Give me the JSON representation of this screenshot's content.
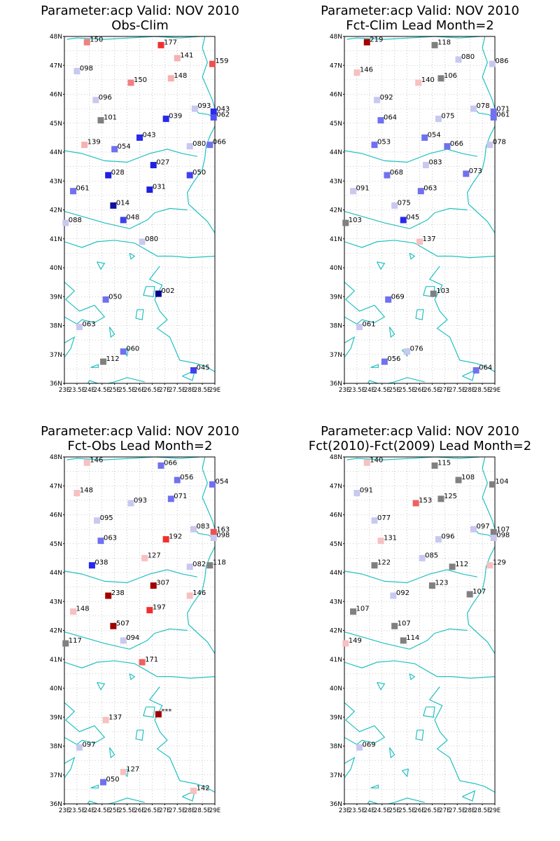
{
  "colors": {
    "coast": "#22c0c0",
    "grid": "#a0a0a0",
    "frame": "#000000",
    "text": "#000000"
  },
  "axes": {
    "lat_labels": [
      "36N",
      "37N",
      "38N",
      "39N",
      "40N",
      "41N",
      "42N",
      "43N",
      "44N",
      "45N",
      "46N",
      "47N",
      "48N"
    ],
    "lon_labels": [
      "23E",
      "23.5E",
      "24E",
      "24.5E",
      "25E",
      "25.5E",
      "26E",
      "26.5E",
      "27E",
      "27.5E",
      "28E",
      "28.5E",
      "29E"
    ],
    "lon_range": [
      23,
      29
    ],
    "lat_range": [
      36,
      48
    ]
  },
  "panels": [
    {
      "title1": "Parameter:acp Valid: NOV 2010",
      "title2": "Obs-Clim",
      "stations": [
        {
          "lon": 23.9,
          "lat": 47.8,
          "label": "150",
          "color": "#f08080"
        },
        {
          "lon": 26.85,
          "lat": 47.7,
          "label": "177",
          "color": "#f03030"
        },
        {
          "lon": 27.5,
          "lat": 47.25,
          "label": "141",
          "color": "#f8b0b0"
        },
        {
          "lon": 28.9,
          "lat": 47.05,
          "label": "159",
          "color": "#f05050"
        },
        {
          "lon": 23.5,
          "lat": 46.8,
          "label": "098",
          "color": "#c8c8f0"
        },
        {
          "lon": 25.65,
          "lat": 46.4,
          "label": "150",
          "color": "#f08080"
        },
        {
          "lon": 27.25,
          "lat": 46.55,
          "label": "148",
          "color": "#f8b0b0"
        },
        {
          "lon": 24.25,
          "lat": 45.8,
          "label": "096",
          "color": "#c8c8f0"
        },
        {
          "lon": 28.2,
          "lat": 45.5,
          "label": "093",
          "color": "#c8c8f0"
        },
        {
          "lon": 28.95,
          "lat": 45.4,
          "label": "043",
          "color": "#2828f0"
        },
        {
          "lon": 28.95,
          "lat": 45.2,
          "label": "062",
          "color": "#5050f0"
        },
        {
          "lon": 24.45,
          "lat": 45.1,
          "label": "101",
          "color": "#808080"
        },
        {
          "lon": 27.05,
          "lat": 45.15,
          "label": "039",
          "color": "#2828f0"
        },
        {
          "lon": 26.0,
          "lat": 44.5,
          "label": "043",
          "color": "#2828f0"
        },
        {
          "lon": 23.8,
          "lat": 44.25,
          "label": "139",
          "color": "#f8b0b0"
        },
        {
          "lon": 25.0,
          "lat": 44.1,
          "label": "054",
          "color": "#7070f0"
        },
        {
          "lon": 28.0,
          "lat": 44.2,
          "label": "080",
          "color": "#c8c8f0"
        },
        {
          "lon": 28.8,
          "lat": 44.25,
          "label": "066",
          "color": "#7070f0"
        },
        {
          "lon": 26.55,
          "lat": 43.55,
          "label": "027",
          "color": "#2020e0"
        },
        {
          "lon": 24.75,
          "lat": 43.2,
          "label": "028",
          "color": "#2020e0"
        },
        {
          "lon": 28.0,
          "lat": 43.2,
          "label": "050",
          "color": "#4040f0"
        },
        {
          "lon": 23.35,
          "lat": 42.65,
          "label": "061",
          "color": "#7070f0"
        },
        {
          "lon": 26.4,
          "lat": 42.7,
          "label": "031",
          "color": "#2020e0"
        },
        {
          "lon": 24.95,
          "lat": 42.15,
          "label": "014",
          "color": "#1010a0"
        },
        {
          "lon": 25.35,
          "lat": 41.65,
          "label": "048",
          "color": "#4040f0"
        },
        {
          "lon": 23.05,
          "lat": 41.55,
          "label": "088",
          "color": "#c8c8f0"
        },
        {
          "lon": 26.1,
          "lat": 40.9,
          "label": "080",
          "color": "#c8c8f0"
        },
        {
          "lon": 26.75,
          "lat": 39.1,
          "label": "002",
          "color": "#000090"
        },
        {
          "lon": 24.65,
          "lat": 38.9,
          "label": "050",
          "color": "#7070f0"
        },
        {
          "lon": 23.6,
          "lat": 37.95,
          "label": "063",
          "color": "#c8c8f0"
        },
        {
          "lon": 25.35,
          "lat": 37.1,
          "label": "060",
          "color": "#7070f0"
        },
        {
          "lon": 24.55,
          "lat": 36.75,
          "label": "112",
          "color": "#808080"
        },
        {
          "lon": 28.15,
          "lat": 36.45,
          "label": "045",
          "color": "#4040f0"
        }
      ]
    },
    {
      "title1": "Parameter:acp Valid: NOV 2010",
      "title2": "Fct-Clim Lead Month=2",
      "stations": [
        {
          "lon": 23.9,
          "lat": 47.8,
          "label": "219",
          "color": "#a00000"
        },
        {
          "lon": 26.6,
          "lat": 47.7,
          "label": "118",
          "color": "#808080"
        },
        {
          "lon": 27.55,
          "lat": 47.2,
          "label": "080",
          "color": "#c8c8f0"
        },
        {
          "lon": 28.9,
          "lat": 47.05,
          "label": "086",
          "color": "#c8c8f0"
        },
        {
          "lon": 23.5,
          "lat": 46.75,
          "label": "146",
          "color": "#f8c0c0"
        },
        {
          "lon": 25.95,
          "lat": 46.4,
          "label": "140",
          "color": "#f8c0c0"
        },
        {
          "lon": 26.85,
          "lat": 46.55,
          "label": "106",
          "color": "#808080"
        },
        {
          "lon": 24.3,
          "lat": 45.8,
          "label": "092",
          "color": "#c8c8f0"
        },
        {
          "lon": 28.15,
          "lat": 45.5,
          "label": "078",
          "color": "#c8c8f0"
        },
        {
          "lon": 28.95,
          "lat": 45.4,
          "label": "071",
          "color": "#7070f0"
        },
        {
          "lon": 28.95,
          "lat": 45.2,
          "label": "061",
          "color": "#7070f0"
        },
        {
          "lon": 24.45,
          "lat": 45.1,
          "label": "064",
          "color": "#7070f0"
        },
        {
          "lon": 26.75,
          "lat": 45.15,
          "label": "075",
          "color": "#c8c8f0"
        },
        {
          "lon": 26.2,
          "lat": 44.5,
          "label": "054",
          "color": "#7070f0"
        },
        {
          "lon": 24.2,
          "lat": 44.25,
          "label": "053",
          "color": "#7070f0"
        },
        {
          "lon": 27.1,
          "lat": 44.2,
          "label": "066",
          "color": "#7070f0"
        },
        {
          "lon": 28.8,
          "lat": 44.25,
          "label": "078",
          "color": "#c8c8f0"
        },
        {
          "lon": 26.25,
          "lat": 43.55,
          "label": "083",
          "color": "#c8c8f0"
        },
        {
          "lon": 24.7,
          "lat": 43.2,
          "label": "068",
          "color": "#7070f0"
        },
        {
          "lon": 27.85,
          "lat": 43.25,
          "label": "073",
          "color": "#7070f0"
        },
        {
          "lon": 23.35,
          "lat": 42.65,
          "label": "091",
          "color": "#c8c8f0"
        },
        {
          "lon": 26.05,
          "lat": 42.65,
          "label": "063",
          "color": "#7070f0"
        },
        {
          "lon": 25.0,
          "lat": 42.15,
          "label": "075",
          "color": "#c8c8f0"
        },
        {
          "lon": 25.35,
          "lat": 41.65,
          "label": "045",
          "color": "#2828f0"
        },
        {
          "lon": 23.05,
          "lat": 41.55,
          "label": "103",
          "color": "#808080"
        },
        {
          "lon": 26.0,
          "lat": 40.9,
          "label": "137",
          "color": "#f8c0c0"
        },
        {
          "lon": 26.55,
          "lat": 39.1,
          "label": "103",
          "color": "#808080"
        },
        {
          "lon": 24.75,
          "lat": 38.9,
          "label": "069",
          "color": "#7070f0"
        },
        {
          "lon": 23.6,
          "lat": 37.95,
          "label": "061",
          "color": "#c8c8f0"
        },
        {
          "lon": 25.5,
          "lat": 37.1,
          "label": "076",
          "color": "#c8c8f0"
        },
        {
          "lon": 24.6,
          "lat": 36.75,
          "label": "056",
          "color": "#7070f0"
        },
        {
          "lon": 28.25,
          "lat": 36.45,
          "label": "064",
          "color": "#7070f0"
        }
      ]
    },
    {
      "title1": "Parameter:acp Valid: NOV 2010",
      "title2": "Fct-Obs Lead Month=2",
      "stations": [
        {
          "lon": 23.9,
          "lat": 47.8,
          "label": "146",
          "color": "#f8c0c0"
        },
        {
          "lon": 26.85,
          "lat": 47.7,
          "label": "066",
          "color": "#7070f0"
        },
        {
          "lon": 27.5,
          "lat": 47.2,
          "label": "056",
          "color": "#7070f0"
        },
        {
          "lon": 28.9,
          "lat": 47.05,
          "label": "054",
          "color": "#7070f0"
        },
        {
          "lon": 23.5,
          "lat": 46.75,
          "label": "148",
          "color": "#f8c0c0"
        },
        {
          "lon": 25.65,
          "lat": 46.4,
          "label": "093",
          "color": "#c8c8f0"
        },
        {
          "lon": 27.25,
          "lat": 46.55,
          "label": "071",
          "color": "#7070f0"
        },
        {
          "lon": 24.3,
          "lat": 45.8,
          "label": "095",
          "color": "#c8c8f0"
        },
        {
          "lon": 28.15,
          "lat": 45.5,
          "label": "083",
          "color": "#c8c8f0"
        },
        {
          "lon": 28.95,
          "lat": 45.4,
          "label": "163",
          "color": "#f05050"
        },
        {
          "lon": 28.95,
          "lat": 45.2,
          "label": "098",
          "color": "#c8c8f0"
        },
        {
          "lon": 24.45,
          "lat": 45.1,
          "label": "063",
          "color": "#7070f0"
        },
        {
          "lon": 27.05,
          "lat": 45.15,
          "label": "192",
          "color": "#f03030"
        },
        {
          "lon": 26.2,
          "lat": 44.5,
          "label": "127",
          "color": "#f8c0c0"
        },
        {
          "lon": 24.1,
          "lat": 44.25,
          "label": "038",
          "color": "#2828f0"
        },
        {
          "lon": 28.0,
          "lat": 44.2,
          "label": "082",
          "color": "#c8c8f0"
        },
        {
          "lon": 28.8,
          "lat": 44.25,
          "label": "118",
          "color": "#808080"
        },
        {
          "lon": 26.55,
          "lat": 43.55,
          "label": "307",
          "color": "#a00000"
        },
        {
          "lon": 24.75,
          "lat": 43.2,
          "label": "238",
          "color": "#a00000"
        },
        {
          "lon": 28.0,
          "lat": 43.2,
          "label": "146",
          "color": "#f8c0c0"
        },
        {
          "lon": 23.35,
          "lat": 42.65,
          "label": "148",
          "color": "#f8c0c0"
        },
        {
          "lon": 26.4,
          "lat": 42.7,
          "label": "197",
          "color": "#f03030"
        },
        {
          "lon": 24.95,
          "lat": 42.15,
          "label": "507",
          "color": "#a00000"
        },
        {
          "lon": 25.35,
          "lat": 41.65,
          "label": "094",
          "color": "#c8c8f0"
        },
        {
          "lon": 23.05,
          "lat": 41.55,
          "label": "117",
          "color": "#808080"
        },
        {
          "lon": 26.1,
          "lat": 40.9,
          "label": "171",
          "color": "#f06060"
        },
        {
          "lon": 26.75,
          "lat": 39.1,
          "label": "***",
          "color": "#a00000"
        },
        {
          "lon": 24.65,
          "lat": 38.9,
          "label": "137",
          "color": "#f8c0c0"
        },
        {
          "lon": 23.6,
          "lat": 37.95,
          "label": "097",
          "color": "#c8c8f0"
        },
        {
          "lon": 25.35,
          "lat": 37.1,
          "label": "127",
          "color": "#f8c0c0"
        },
        {
          "lon": 24.55,
          "lat": 36.75,
          "label": "050",
          "color": "#7070f0"
        },
        {
          "lon": 28.15,
          "lat": 36.45,
          "label": "142",
          "color": "#f8c0c0"
        }
      ]
    },
    {
      "title1": "Parameter:acp Valid: NOV 2010",
      "title2": "Fct(2010)-Fct(2009) Lead Month=2",
      "stations": [
        {
          "lon": 23.9,
          "lat": 47.8,
          "label": "140",
          "color": "#f8c0c0"
        },
        {
          "lon": 26.6,
          "lat": 47.7,
          "label": "115",
          "color": "#808080"
        },
        {
          "lon": 27.55,
          "lat": 47.2,
          "label": "108",
          "color": "#808080"
        },
        {
          "lon": 28.9,
          "lat": 47.05,
          "label": "104",
          "color": "#808080"
        },
        {
          "lon": 23.5,
          "lat": 46.75,
          "label": "091",
          "color": "#c8c8f0"
        },
        {
          "lon": 25.85,
          "lat": 46.4,
          "label": "153",
          "color": "#f06060"
        },
        {
          "lon": 26.85,
          "lat": 46.55,
          "label": "125",
          "color": "#808080"
        },
        {
          "lon": 24.2,
          "lat": 45.8,
          "label": "077",
          "color": "#c8c8f0"
        },
        {
          "lon": 28.15,
          "lat": 45.5,
          "label": "097",
          "color": "#c8c8f0"
        },
        {
          "lon": 28.95,
          "lat": 45.4,
          "label": "107",
          "color": "#808080"
        },
        {
          "lon": 28.95,
          "lat": 45.2,
          "label": "098",
          "color": "#c8c8f0"
        },
        {
          "lon": 24.45,
          "lat": 45.1,
          "label": "131",
          "color": "#f8c0c0"
        },
        {
          "lon": 26.75,
          "lat": 45.15,
          "label": "096",
          "color": "#c8c8f0"
        },
        {
          "lon": 26.1,
          "lat": 44.5,
          "label": "085",
          "color": "#c8c8f0"
        },
        {
          "lon": 24.2,
          "lat": 44.25,
          "label": "122",
          "color": "#808080"
        },
        {
          "lon": 27.3,
          "lat": 44.2,
          "label": "112",
          "color": "#808080"
        },
        {
          "lon": 28.8,
          "lat": 44.25,
          "label": "129",
          "color": "#f8c0c0"
        },
        {
          "lon": 26.5,
          "lat": 43.55,
          "label": "123",
          "color": "#808080"
        },
        {
          "lon": 24.95,
          "lat": 43.2,
          "label": "092",
          "color": "#c8c8f0"
        },
        {
          "lon": 28.0,
          "lat": 43.25,
          "label": "107",
          "color": "#808080"
        },
        {
          "lon": 23.35,
          "lat": 42.65,
          "label": "107",
          "color": "#808080"
        },
        {
          "lon": 25.0,
          "lat": 42.15,
          "label": "107",
          "color": "#808080"
        },
        {
          "lon": 25.35,
          "lat": 41.65,
          "label": "114",
          "color": "#808080"
        },
        {
          "lon": 23.05,
          "lat": 41.55,
          "label": "149",
          "color": "#f8c0c0"
        },
        {
          "lon": 23.6,
          "lat": 37.95,
          "label": "069",
          "color": "#c8c8f0"
        }
      ]
    }
  ]
}
